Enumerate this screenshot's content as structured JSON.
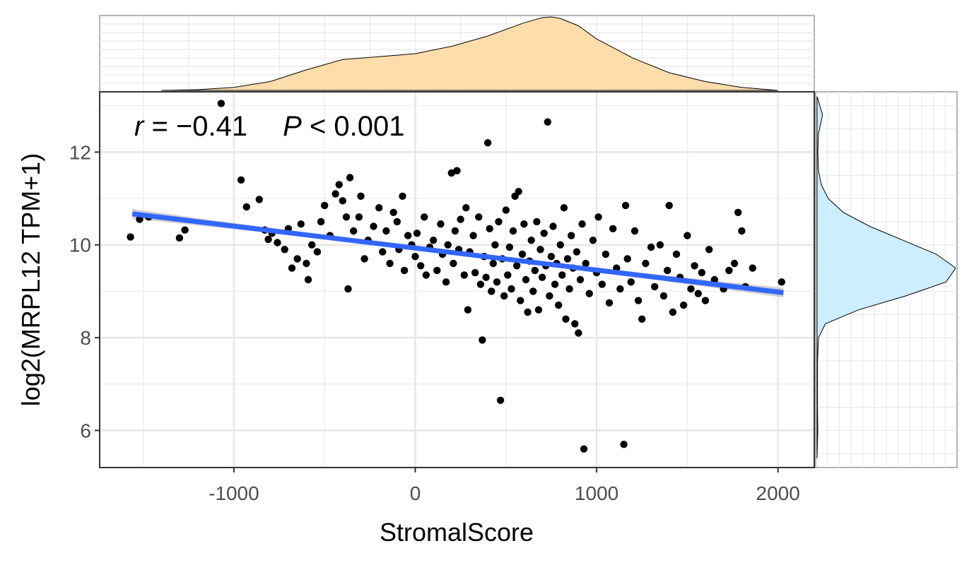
{
  "chart_data": {
    "type": "scatter",
    "title": "",
    "xlabel": "StromalScore",
    "ylabel": "log2(MRPL12 TPM+1)",
    "xlim": [
      -1740,
      2200
    ],
    "ylim": [
      5.2,
      13.3
    ],
    "x_ticks": [
      -1000,
      0,
      1000,
      2000
    ],
    "x_tick_labels": [
      "-1000",
      "0",
      "1000",
      "2000"
    ],
    "y_ticks": [
      6,
      8,
      10,
      12
    ],
    "y_tick_labels": [
      "6",
      "8",
      "10",
      "12"
    ],
    "grid": true,
    "annotation": {
      "r_symbol": "r",
      "eq": " = ",
      "r_value": "−0.41",
      "p_symbol": "P",
      "lt": " < ",
      "p_value": "0.001"
    },
    "regression": {
      "x": [
        -1560,
        2030
      ],
      "y": [
        10.67,
        8.97
      ],
      "color": "#3366FF",
      "ci_color": "#bfbfbf"
    },
    "point_color": "#000000",
    "points": [
      [
        -1570,
        10.17
      ],
      [
        -1520,
        10.55
      ],
      [
        -1470,
        10.6
      ],
      [
        -1300,
        10.15
      ],
      [
        -1270,
        10.32
      ],
      [
        -1070,
        13.05
      ],
      [
        -960,
        11.4
      ],
      [
        -930,
        10.82
      ],
      [
        -860,
        10.98
      ],
      [
        -830,
        10.32
      ],
      [
        -810,
        10.12
      ],
      [
        -790,
        10.25
      ],
      [
        -760,
        10.05
      ],
      [
        -720,
        9.9
      ],
      [
        -700,
        10.35
      ],
      [
        -680,
        9.5
      ],
      [
        -650,
        9.7
      ],
      [
        -630,
        10.45
      ],
      [
        -600,
        9.6
      ],
      [
        -590,
        9.25
      ],
      [
        -570,
        10.0
      ],
      [
        -540,
        9.85
      ],
      [
        -520,
        10.5
      ],
      [
        -500,
        10.85
      ],
      [
        -470,
        10.2
      ],
      [
        -440,
        11.1
      ],
      [
        -420,
        11.3
      ],
      [
        -400,
        10.95
      ],
      [
        -380,
        10.6
      ],
      [
        -370,
        9.05
      ],
      [
        -360,
        11.45
      ],
      [
        -340,
        10.3
      ],
      [
        -310,
        10.6
      ],
      [
        -300,
        11.05
      ],
      [
        -280,
        9.7
      ],
      [
        -260,
        10.1
      ],
      [
        -230,
        10.4
      ],
      [
        -200,
        10.8
      ],
      [
        -180,
        9.85
      ],
      [
        -160,
        10.3
      ],
      [
        -140,
        9.6
      ],
      [
        -120,
        10.7
      ],
      [
        -100,
        10.5
      ],
      [
        -90,
        9.9
      ],
      [
        -70,
        11.05
      ],
      [
        -60,
        9.45
      ],
      [
        -40,
        10.2
      ],
      [
        -20,
        10.0
      ],
      [
        0,
        9.75
      ],
      [
        10,
        10.25
      ],
      [
        30,
        9.55
      ],
      [
        50,
        10.6
      ],
      [
        60,
        9.35
      ],
      [
        80,
        9.95
      ],
      [
        100,
        10.1
      ],
      [
        120,
        9.45
      ],
      [
        140,
        10.45
      ],
      [
        150,
        9.8
      ],
      [
        170,
        9.2
      ],
      [
        180,
        10.0
      ],
      [
        200,
        11.55
      ],
      [
        210,
        9.6
      ],
      [
        220,
        10.3
      ],
      [
        230,
        11.6
      ],
      [
        240,
        9.9
      ],
      [
        250,
        10.55
      ],
      [
        270,
        9.35
      ],
      [
        280,
        10.8
      ],
      [
        290,
        8.6
      ],
      [
        300,
        9.85
      ],
      [
        320,
        10.2
      ],
      [
        330,
        9.4
      ],
      [
        350,
        10.6
      ],
      [
        360,
        9.15
      ],
      [
        370,
        7.95
      ],
      [
        380,
        9.75
      ],
      [
        390,
        9.3
      ],
      [
        400,
        12.2
      ],
      [
        410,
        10.35
      ],
      [
        420,
        9.0
      ],
      [
        430,
        9.6
      ],
      [
        440,
        10.0
      ],
      [
        450,
        9.2
      ],
      [
        460,
        10.5
      ],
      [
        470,
        6.65
      ],
      [
        480,
        9.7
      ],
      [
        490,
        8.9
      ],
      [
        500,
        10.75
      ],
      [
        510,
        9.35
      ],
      [
        520,
        9.95
      ],
      [
        530,
        9.05
      ],
      [
        540,
        10.3
      ],
      [
        550,
        11.05
      ],
      [
        560,
        9.55
      ],
      [
        570,
        11.15
      ],
      [
        580,
        8.8
      ],
      [
        590,
        9.8
      ],
      [
        600,
        10.45
      ],
      [
        610,
        9.25
      ],
      [
        620,
        8.55
      ],
      [
        630,
        9.65
      ],
      [
        640,
        10.1
      ],
      [
        650,
        9.0
      ],
      [
        660,
        9.45
      ],
      [
        670,
        10.5
      ],
      [
        680,
        8.6
      ],
      [
        690,
        9.9
      ],
      [
        700,
        9.3
      ],
      [
        710,
        10.25
      ],
      [
        720,
        9.55
      ],
      [
        730,
        12.65
      ],
      [
        740,
        8.9
      ],
      [
        750,
        9.75
      ],
      [
        760,
        10.4
      ],
      [
        770,
        9.15
      ],
      [
        780,
        9.6
      ],
      [
        790,
        8.7
      ],
      [
        800,
        10.0
      ],
      [
        810,
        9.35
      ],
      [
        820,
        10.8
      ],
      [
        830,
        8.4
      ],
      [
        840,
        9.7
      ],
      [
        850,
        9.05
      ],
      [
        860,
        10.2
      ],
      [
        870,
        9.5
      ],
      [
        880,
        8.3
      ],
      [
        890,
        9.85
      ],
      [
        900,
        8.1
      ],
      [
        910,
        9.25
      ],
      [
        920,
        10.45
      ],
      [
        930,
        5.6
      ],
      [
        940,
        9.6
      ],
      [
        960,
        8.95
      ],
      [
        980,
        10.1
      ],
      [
        1000,
        9.4
      ],
      [
        1010,
        10.6
      ],
      [
        1030,
        9.15
      ],
      [
        1050,
        9.8
      ],
      [
        1070,
        8.75
      ],
      [
        1090,
        10.35
      ],
      [
        1110,
        9.5
      ],
      [
        1130,
        9.05
      ],
      [
        1150,
        5.7
      ],
      [
        1160,
        10.85
      ],
      [
        1170,
        9.7
      ],
      [
        1190,
        9.2
      ],
      [
        1210,
        10.3
      ],
      [
        1230,
        8.8
      ],
      [
        1250,
        8.4
      ],
      [
        1270,
        9.6
      ],
      [
        1300,
        9.95
      ],
      [
        1320,
        9.1
      ],
      [
        1350,
        10.0
      ],
      [
        1370,
        8.9
      ],
      [
        1390,
        9.45
      ],
      [
        1400,
        10.85
      ],
      [
        1420,
        8.55
      ],
      [
        1440,
        9.8
      ],
      [
        1460,
        9.3
      ],
      [
        1480,
        8.7
      ],
      [
        1500,
        10.2
      ],
      [
        1520,
        9.05
      ],
      [
        1540,
        9.55
      ],
      [
        1560,
        8.95
      ],
      [
        1580,
        9.4
      ],
      [
        1600,
        8.8
      ],
      [
        1620,
        9.9
      ],
      [
        1650,
        9.25
      ],
      [
        1700,
        9.05
      ],
      [
        1730,
        9.45
      ],
      [
        1760,
        9.6
      ],
      [
        1780,
        10.7
      ],
      [
        1800,
        10.3
      ],
      [
        1820,
        9.1
      ],
      [
        1860,
        9.5
      ],
      [
        2020,
        9.2
      ]
    ]
  },
  "marginal_x": {
    "fill": "#FFDDAA",
    "stroke": "#000000",
    "x": [
      -1400,
      -1200,
      -1000,
      -800,
      -600,
      -400,
      -200,
      0,
      200,
      400,
      600,
      700,
      750,
      800,
      900,
      1000,
      1200,
      1400,
      1600,
      1800,
      2000
    ],
    "density": [
      0.0,
      0.01,
      0.04,
      0.12,
      0.28,
      0.42,
      0.46,
      0.5,
      0.6,
      0.74,
      0.92,
      0.99,
      1.0,
      0.98,
      0.88,
      0.7,
      0.44,
      0.24,
      0.12,
      0.04,
      0.0
    ]
  },
  "marginal_y": {
    "fill": "#CCEEFF",
    "stroke": "#000000",
    "y": [
      5.4,
      6.0,
      6.5,
      7.0,
      7.5,
      8.0,
      8.3,
      8.6,
      8.9,
      9.2,
      9.5,
      9.8,
      10.1,
      10.4,
      10.7,
      11.0,
      11.3,
      11.6,
      12.0,
      12.4,
      12.8,
      13.2
    ],
    "density": [
      0.0,
      0.005,
      0.003,
      0.003,
      0.003,
      0.01,
      0.06,
      0.3,
      0.64,
      0.93,
      1.0,
      0.86,
      0.62,
      0.38,
      0.19,
      0.08,
      0.03,
      0.01,
      0.005,
      0.01,
      0.04,
      0.0
    ]
  }
}
